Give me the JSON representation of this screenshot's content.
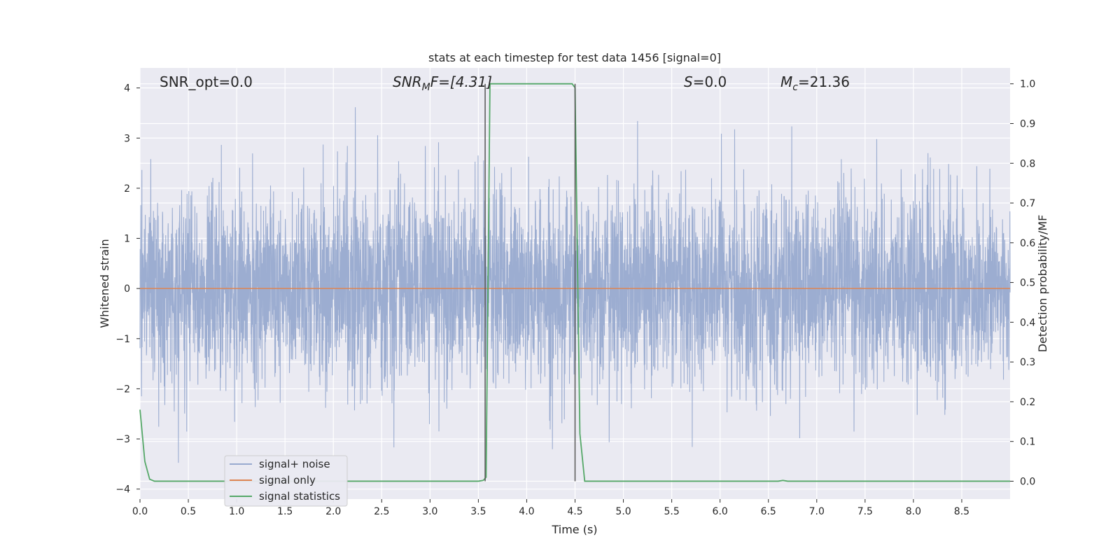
{
  "chart_data": {
    "type": "line",
    "title": "stats at each timestep for test data 1456 [signal=0]",
    "xlabel": "Time (s)",
    "ylabel": "Whitened strain",
    "y2label": "Detection probability/MF",
    "xlim": [
      0,
      9
    ],
    "ylim": [
      -4.2,
      4.4
    ],
    "y2lim": [
      -0.045,
      1.04
    ],
    "x_ticks": [
      "0.0",
      "0.5",
      "1.0",
      "1.5",
      "2.0",
      "2.5",
      "3.0",
      "3.5",
      "4.0",
      "4.5",
      "5.0",
      "5.5",
      "6.0",
      "6.5",
      "7.0",
      "7.5",
      "8.0",
      "8.5"
    ],
    "y_ticks": [
      "4",
      "3",
      "2",
      "1",
      "0",
      "−1",
      "−2",
      "−3",
      "−4"
    ],
    "y2_ticks": [
      "1.0",
      "0.9",
      "0.8",
      "0.7",
      "0.6",
      "0.5",
      "0.4",
      "0.3",
      "0.2",
      "0.1",
      "0.0"
    ],
    "grid": true,
    "legend_position": "lower-left",
    "annotations": {
      "snr_opt": "SNR_opt=0.0",
      "snr_mf_sym": "SNR",
      "snr_mf_sub": "M",
      "snr_mf_rest": "F=[4.31]",
      "s_sym": "S",
      "s_rest": "=0.0",
      "mc_sym": "M",
      "mc_sub": "c",
      "mc_rest": "=21.36"
    },
    "series": [
      {
        "name": "signal+ noise",
        "color": "#98aacf",
        "noise_band": [
          -1.3,
          1.3
        ],
        "peak_range": [
          -3.65,
          4.0
        ]
      },
      {
        "name": "signal only",
        "color": "#dd8452",
        "values_constant": 0.0
      },
      {
        "name": "signal statistics",
        "color": "#55a868",
        "axis": "right",
        "x": [
          0.0,
          0.05,
          0.1,
          0.15,
          1.0,
          2.0,
          3.0,
          3.5,
          3.55,
          3.58,
          3.62,
          3.65,
          4.0,
          4.47,
          4.5,
          4.55,
          4.6,
          4.65,
          5.0,
          6.0,
          6.6,
          6.65,
          6.7,
          7.0,
          8.0,
          9.0
        ],
        "y": [
          0.18,
          0.05,
          0.005,
          0.0,
          0.0,
          0.0,
          0.0,
          0.0,
          0.002,
          0.01,
          1.0,
          1.0,
          1.0,
          1.0,
          0.99,
          0.12,
          0.0,
          0.0,
          0.0,
          0.0,
          0.0,
          0.002,
          0.0,
          0.0,
          0.0,
          0.0
        ]
      },
      {
        "name": "markers",
        "color": "#555555",
        "axis": "right",
        "vlines_x": [
          3.57,
          4.5
        ]
      }
    ]
  }
}
